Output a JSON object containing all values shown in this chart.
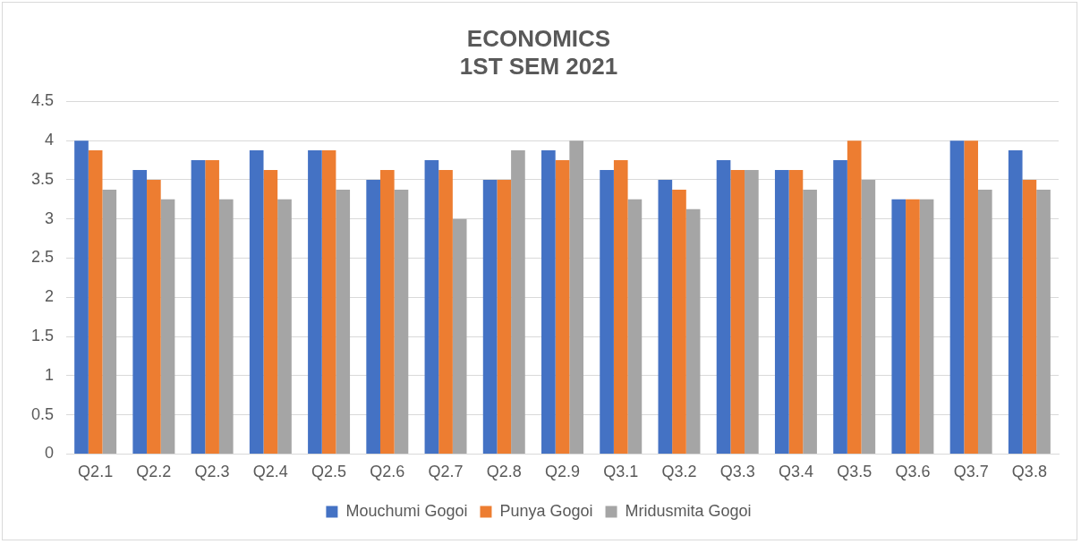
{
  "chart_data": {
    "type": "bar",
    "title": "ECONOMICS\n1ST SEM 2021",
    "categories": [
      "Q2.1",
      "Q2.2",
      "Q2.3",
      "Q2.4",
      "Q2.5",
      "Q2.6",
      "Q2.7",
      "Q2.8",
      "Q2.9",
      "Q3.1",
      "Q3.2",
      "Q3.3",
      "Q3.4",
      "Q3.5",
      "Q3.6",
      "Q3.7",
      "Q3.8"
    ],
    "series": [
      {
        "name": "Mouchumi Gogoi",
        "color": "#4472c4",
        "values": [
          4,
          3.625,
          3.75,
          3.875,
          3.875,
          3.5,
          3.75,
          3.5,
          3.875,
          3.625,
          3.5,
          3.75,
          3.625,
          3.75,
          3.25,
          4,
          3.875
        ]
      },
      {
        "name": "Punya Gogoi",
        "color": "#ed7d31",
        "values": [
          3.875,
          3.5,
          3.75,
          3.625,
          3.875,
          3.625,
          3.625,
          3.5,
          3.75,
          3.75,
          3.375,
          3.625,
          3.625,
          4,
          3.25,
          4,
          3.5
        ]
      },
      {
        "name": "Mridusmita Gogoi",
        "color": "#a5a5a5",
        "values": [
          3.375,
          3.25,
          3.25,
          3.25,
          3.375,
          3.375,
          3,
          3.875,
          4,
          3.25,
          3.125,
          3.625,
          3.375,
          3.5,
          3.25,
          3.375,
          3.375
        ]
      }
    ],
    "ylim": [
      0,
      4.5
    ],
    "yticks": [
      0,
      0.5,
      1,
      1.5,
      2,
      2.5,
      3,
      3.5,
      4,
      4.5
    ],
    "grid": "y",
    "legend": "bottom"
  }
}
